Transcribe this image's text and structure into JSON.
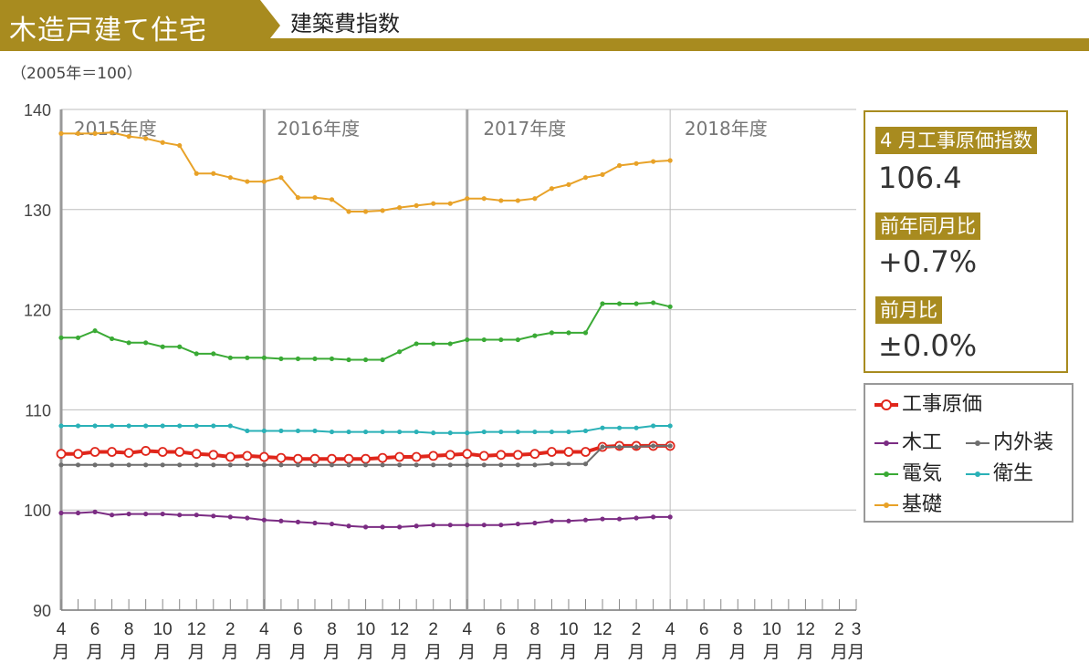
{
  "header": {
    "title": "木造戸建て住宅",
    "subtitle": "建築費指数"
  },
  "unit_label": "（2005年＝100）",
  "info": {
    "index_label": "4 月工事原価指数",
    "index_value": "106.4",
    "yoy_label": "前年同月比",
    "yoy_value": "+0.7%",
    "mom_label": "前月比",
    "mom_value": "±0.0%"
  },
  "legend": {
    "total": "工事原価",
    "wood": "木工",
    "interior": "内外装",
    "electric": "電気",
    "sanitary": "衛生",
    "foundation": "基礎"
  },
  "colors": {
    "brand": "#a88b1f",
    "total": "#e0261b",
    "wood": "#7b2c83",
    "interior": "#6e6e6e",
    "electric": "#3aaa35",
    "sanitary": "#2ab1b7",
    "foundation": "#e8a228"
  },
  "chart_data": {
    "type": "line",
    "title": "建築費指数",
    "ylabel": "（2005年＝100）",
    "ylim": [
      90,
      140
    ],
    "yticks": [
      "90",
      "100",
      "110",
      "120",
      "130",
      "140"
    ],
    "year_labels": [
      "2015年度",
      "2016年度",
      "2017年度",
      "2018年度"
    ],
    "x_month_labels": [
      "4",
      "",
      "6",
      "",
      "8",
      "",
      "10",
      "",
      "12",
      "",
      "2",
      "",
      "4",
      "",
      "6",
      "",
      "8",
      "",
      "10",
      "",
      "12",
      "",
      "2",
      "",
      "4",
      "",
      "6",
      "",
      "8",
      "",
      "10",
      "",
      "12",
      "",
      "2",
      "",
      "4",
      "",
      "6",
      "",
      "8",
      "",
      "10",
      "",
      "12",
      "",
      "2",
      "3"
    ],
    "x_unit_label": "月",
    "series": [
      {
        "key": "foundation",
        "name": "基礎",
        "values": [
          137.6,
          137.6,
          137.6,
          137.7,
          137.3,
          137.1,
          136.7,
          136.4,
          133.6,
          133.6,
          133.2,
          132.8,
          132.8,
          133.2,
          131.2,
          131.2,
          131.0,
          129.8,
          129.8,
          129.9,
          130.2,
          130.4,
          130.6,
          130.6,
          131.1,
          131.1,
          130.9,
          130.9,
          131.1,
          132.1,
          132.5,
          133.2,
          133.5,
          134.4,
          134.6,
          134.8,
          134.9
        ]
      },
      {
        "key": "electric",
        "name": "電気",
        "values": [
          117.2,
          117.2,
          117.9,
          117.1,
          116.7,
          116.7,
          116.3,
          116.3,
          115.6,
          115.6,
          115.2,
          115.2,
          115.2,
          115.1,
          115.1,
          115.1,
          115.1,
          115.0,
          115.0,
          115.0,
          115.8,
          116.6,
          116.6,
          116.6,
          117.0,
          117.0,
          117.0,
          117.0,
          117.4,
          117.7,
          117.7,
          117.7,
          120.6,
          120.6,
          120.6,
          120.7,
          120.3
        ]
      },
      {
        "key": "sanitary",
        "name": "衛生",
        "values": [
          108.4,
          108.4,
          108.4,
          108.4,
          108.4,
          108.4,
          108.4,
          108.4,
          108.4,
          108.4,
          108.4,
          107.9,
          107.9,
          107.9,
          107.9,
          107.9,
          107.8,
          107.8,
          107.8,
          107.8,
          107.8,
          107.8,
          107.7,
          107.7,
          107.7,
          107.8,
          107.8,
          107.8,
          107.8,
          107.8,
          107.8,
          107.9,
          108.2,
          108.2,
          108.2,
          108.4,
          108.4
        ]
      },
      {
        "key": "total",
        "name": "工事原価",
        "values": [
          105.6,
          105.6,
          105.8,
          105.8,
          105.7,
          105.9,
          105.8,
          105.8,
          105.6,
          105.5,
          105.3,
          105.4,
          105.3,
          105.2,
          105.1,
          105.1,
          105.1,
          105.1,
          105.1,
          105.2,
          105.3,
          105.3,
          105.4,
          105.5,
          105.6,
          105.4,
          105.5,
          105.5,
          105.6,
          105.8,
          105.8,
          105.8,
          106.3,
          106.4,
          106.4,
          106.4,
          106.4
        ]
      },
      {
        "key": "interior",
        "name": "内外装",
        "values": [
          104.5,
          104.5,
          104.5,
          104.5,
          104.5,
          104.5,
          104.5,
          104.5,
          104.5,
          104.5,
          104.5,
          104.5,
          104.5,
          104.5,
          104.5,
          104.5,
          104.5,
          104.5,
          104.5,
          104.5,
          104.5,
          104.5,
          104.5,
          104.5,
          104.5,
          104.5,
          104.5,
          104.5,
          104.5,
          104.6,
          104.6,
          104.6,
          106.3,
          106.3,
          106.3,
          106.4,
          106.4
        ]
      },
      {
        "key": "wood",
        "name": "木工",
        "values": [
          99.7,
          99.7,
          99.8,
          99.5,
          99.6,
          99.6,
          99.6,
          99.5,
          99.5,
          99.4,
          99.3,
          99.2,
          99.0,
          98.9,
          98.8,
          98.7,
          98.6,
          98.4,
          98.3,
          98.3,
          98.3,
          98.4,
          98.5,
          98.5,
          98.5,
          98.5,
          98.5,
          98.6,
          98.7,
          98.9,
          98.9,
          99.0,
          99.1,
          99.1,
          99.2,
          99.3,
          99.3
        ]
      }
    ]
  }
}
